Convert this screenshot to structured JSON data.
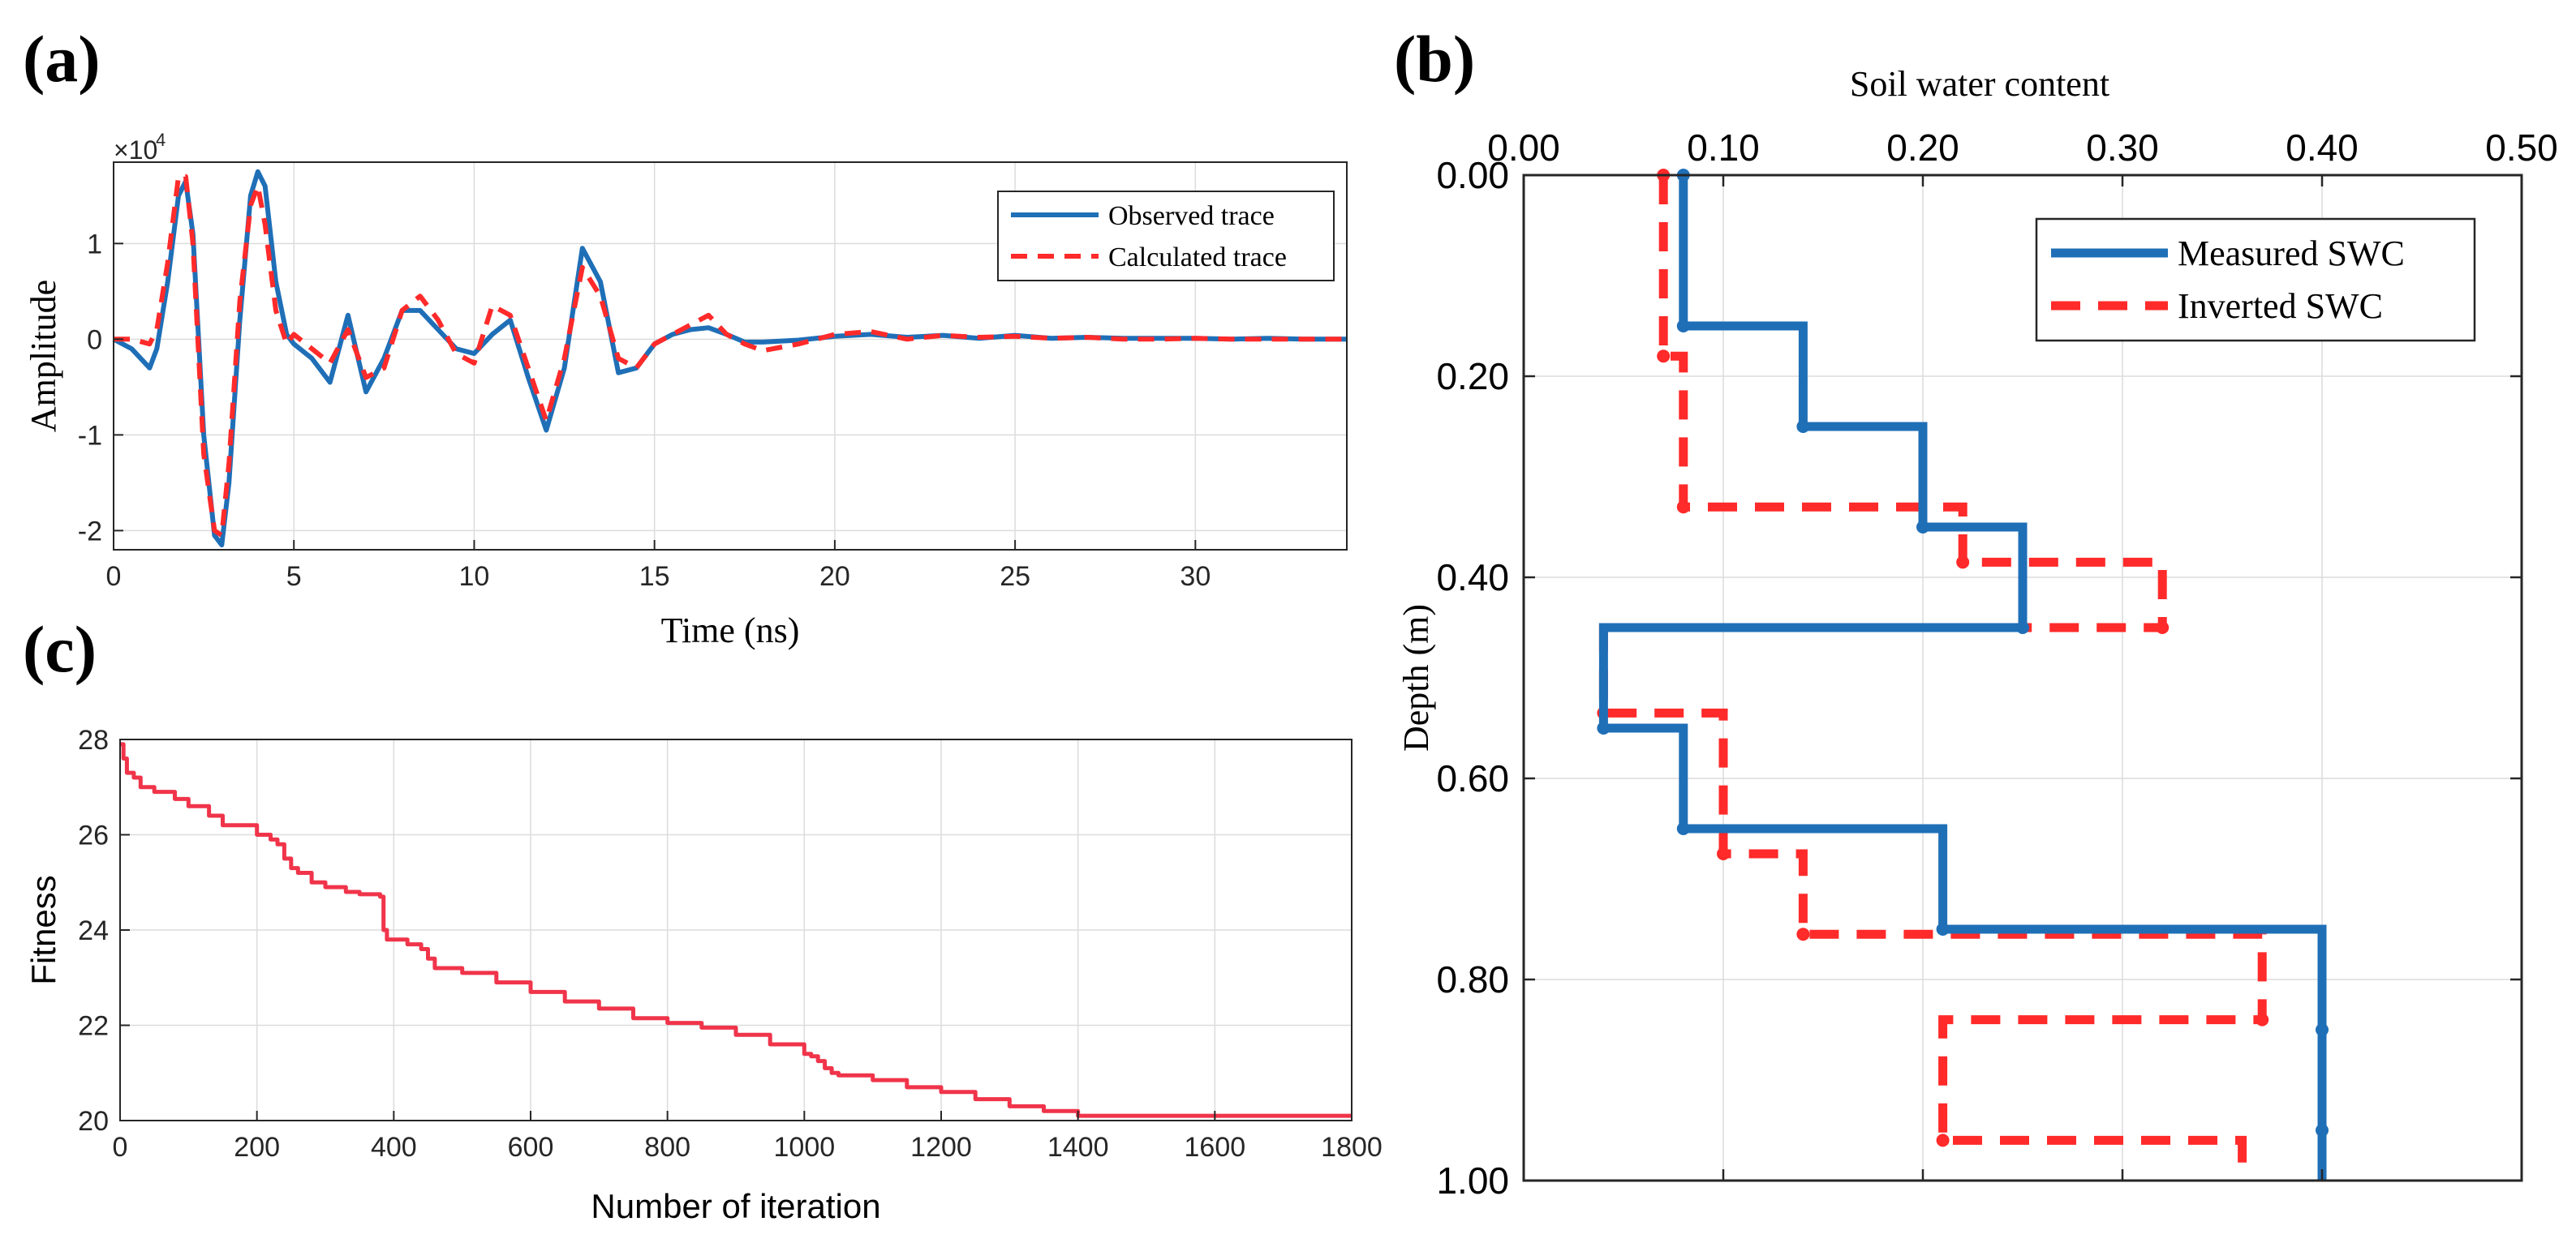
{
  "panels": {
    "a": {
      "letter": "(a)"
    },
    "b": {
      "letter": "(b)"
    },
    "c": {
      "letter": "(c)"
    }
  },
  "chart_data": [
    {
      "id": "a",
      "type": "line",
      "title": "",
      "xlabel": "Time (ns)",
      "ylabel": "Amplitude",
      "exponent_base": "×10",
      "exponent_power": "4",
      "xlim": [
        0,
        34.2
      ],
      "ylim": [
        -2.2,
        1.85
      ],
      "xticks": [
        0,
        5,
        10,
        15,
        20,
        25,
        30
      ],
      "yticks": [
        -2,
        -1,
        0,
        1
      ],
      "grid": true,
      "legend": "top-right",
      "colors": {
        "observed": "#1f6fb7",
        "calculated": "#ff2a2a"
      },
      "series": [
        {
          "name": "Observed trace",
          "style": "solid",
          "x": [
            0,
            0.5,
            1.0,
            1.2,
            1.5,
            1.8,
            2.0,
            2.2,
            2.5,
            2.8,
            3.0,
            3.2,
            3.5,
            3.8,
            4.0,
            4.2,
            4.5,
            4.8,
            5.0,
            5.5,
            6.0,
            6.5,
            7.0,
            7.5,
            8.0,
            8.5,
            9.0,
            9.5,
            10.0,
            10.5,
            11.0,
            11.5,
            12.0,
            12.5,
            13.0,
            13.5,
            14.0,
            14.5,
            15.0,
            15.5,
            16.0,
            16.5,
            17.0,
            17.5,
            18.0,
            19.0,
            20.0,
            21.0,
            22.0,
            23.0,
            24.0,
            25.0,
            26.0,
            27.0,
            28.0,
            29.0,
            30.0,
            31.0,
            32.0,
            33.0,
            34.2
          ],
          "y": [
            0,
            -0.1,
            -0.3,
            -0.1,
            0.6,
            1.5,
            1.65,
            1.1,
            -1.0,
            -2.05,
            -2.15,
            -1.5,
            0.2,
            1.5,
            1.75,
            1.6,
            0.6,
            0.05,
            -0.05,
            -0.2,
            -0.45,
            0.25,
            -0.55,
            -0.2,
            0.3,
            0.3,
            0.1,
            -0.1,
            -0.15,
            0.05,
            0.2,
            -0.4,
            -0.95,
            -0.3,
            0.95,
            0.6,
            -0.35,
            -0.3,
            -0.05,
            0.05,
            0.1,
            0.12,
            0.05,
            -0.03,
            -0.03,
            -0.01,
            0.03,
            0.05,
            0.02,
            0.04,
            0.01,
            0.04,
            0.01,
            0.02,
            0.01,
            0.01,
            0.01,
            0.0,
            0.01,
            0.0,
            0.0
          ]
        },
        {
          "name": "Calculated trace",
          "style": "dashed",
          "x": [
            0,
            0.5,
            1.0,
            1.2,
            1.5,
            1.8,
            2.0,
            2.2,
            2.5,
            2.8,
            3.0,
            3.2,
            3.5,
            3.8,
            4.0,
            4.2,
            4.5,
            4.8,
            5.0,
            5.5,
            6.0,
            6.5,
            7.0,
            7.5,
            8.0,
            8.5,
            9.0,
            9.5,
            10.0,
            10.5,
            11.0,
            11.5,
            12.0,
            12.5,
            13.0,
            13.5,
            14.0,
            14.5,
            15.0,
            15.5,
            16.0,
            16.5,
            17.0,
            17.5,
            18.0,
            19.0,
            20.0,
            21.0,
            22.0,
            23.0,
            24.0,
            25.0,
            26.0,
            27.0,
            28.0,
            29.0,
            30.0,
            31.0,
            32.0,
            33.0,
            34.2
          ],
          "y": [
            0,
            0.0,
            -0.05,
            0.1,
            0.8,
            1.7,
            1.7,
            1.0,
            -1.2,
            -2.0,
            -2.05,
            -1.3,
            0.4,
            1.4,
            1.6,
            1.2,
            0.3,
            -0.05,
            0.05,
            -0.1,
            -0.25,
            0.1,
            -0.4,
            -0.3,
            0.3,
            0.45,
            0.2,
            -0.15,
            -0.25,
            0.35,
            0.25,
            -0.3,
            -0.85,
            -0.2,
            0.75,
            0.45,
            -0.2,
            -0.3,
            -0.05,
            0.05,
            0.15,
            0.25,
            0.05,
            -0.05,
            -0.12,
            -0.05,
            0.05,
            0.08,
            0.0,
            0.04,
            0.02,
            0.03,
            0.01,
            0.02,
            0.0,
            0.0,
            0.01,
            0.0,
            0.0,
            0.0,
            0.0
          ]
        }
      ]
    },
    {
      "id": "b",
      "type": "line",
      "title": "",
      "xlabel": "Soil water content",
      "ylabel": "Depth (m)",
      "xlim": [
        0,
        0.5
      ],
      "ylim": [
        0,
        1
      ],
      "y_reversed": true,
      "x_axis_position": "top",
      "xticks": [
        0,
        0.1,
        0.2,
        0.3,
        0.4,
        0.5
      ],
      "xtick_labels": [
        "0.00",
        "0.10",
        "0.20",
        "0.30",
        "0.40",
        "0.50"
      ],
      "yticks": [
        0,
        0.2,
        0.4,
        0.6,
        0.8,
        1.0
      ],
      "ytick_labels": [
        "0.00",
        "0.20",
        "0.40",
        "0.60",
        "0.80",
        "1.00"
      ],
      "grid": true,
      "legend": "top-right",
      "colors": {
        "measured": "#1f6fb7",
        "inverted": "#ff2a2a"
      },
      "series": [
        {
          "name": "Measured SWC",
          "style": "solid",
          "x": [
            0.08,
            0.08,
            0.14,
            0.14,
            0.2,
            0.2,
            0.25,
            0.25,
            0.04,
            0.04,
            0.08,
            0.08,
            0.21,
            0.21,
            0.4,
            0.4,
            0.4,
            0.4
          ],
          "y": [
            0.0,
            0.15,
            0.15,
            0.25,
            0.25,
            0.35,
            0.35,
            0.45,
            0.45,
            0.55,
            0.55,
            0.65,
            0.65,
            0.75,
            0.75,
            0.85,
            0.95,
            1.0
          ],
          "markers": [
            [
              0.08,
              0.0
            ],
            [
              0.08,
              0.15
            ],
            [
              0.14,
              0.25
            ],
            [
              0.2,
              0.35
            ],
            [
              0.25,
              0.45
            ],
            [
              0.04,
              0.55
            ],
            [
              0.08,
              0.65
            ],
            [
              0.21,
              0.75
            ],
            [
              0.4,
              0.85
            ],
            [
              0.4,
              0.95
            ]
          ]
        },
        {
          "name": "Inverted SWC",
          "style": "dashed",
          "x": [
            0.07,
            0.07,
            0.08,
            0.08,
            0.22,
            0.22,
            0.32,
            0.32,
            0.04,
            0.04,
            0.1,
            0.1,
            0.14,
            0.14,
            0.37,
            0.37,
            0.21,
            0.21,
            0.36,
            0.36
          ],
          "y": [
            0.0,
            0.18,
            0.18,
            0.33,
            0.33,
            0.385,
            0.385,
            0.45,
            0.45,
            0.535,
            0.535,
            0.675,
            0.675,
            0.755,
            0.755,
            0.84,
            0.84,
            0.96,
            0.96,
            1.0
          ],
          "markers": [
            [
              0.07,
              0.0
            ],
            [
              0.07,
              0.18
            ],
            [
              0.08,
              0.33
            ],
            [
              0.22,
              0.385
            ],
            [
              0.32,
              0.45
            ],
            [
              0.04,
              0.535
            ],
            [
              0.1,
              0.675
            ],
            [
              0.14,
              0.755
            ],
            [
              0.37,
              0.84
            ],
            [
              0.21,
              0.96
            ]
          ]
        }
      ]
    },
    {
      "id": "c",
      "type": "line",
      "title": "",
      "xlabel": "Number of iteration",
      "ylabel": "Fitness",
      "xlim": [
        0,
        1800
      ],
      "ylim": [
        20,
        28
      ],
      "xticks": [
        0,
        200,
        400,
        600,
        800,
        1000,
        1200,
        1400,
        1600,
        1800
      ],
      "yticks": [
        20,
        22,
        24,
        26,
        28
      ],
      "grid": true,
      "colors": {
        "line": "#f0344a"
      },
      "series": [
        {
          "x": [
            0,
            5,
            10,
            20,
            30,
            50,
            80,
            100,
            130,
            150,
            200,
            220,
            230,
            240,
            250,
            260,
            280,
            300,
            330,
            350,
            380,
            385,
            390,
            420,
            440,
            450,
            460,
            500,
            550,
            600,
            650,
            700,
            750,
            800,
            850,
            900,
            950,
            1000,
            1010,
            1020,
            1030,
            1040,
            1050,
            1100,
            1150,
            1200,
            1250,
            1300,
            1350,
            1400,
            1450,
            1500,
            1600,
            1700,
            1800
          ],
          "y": [
            27.9,
            27.6,
            27.3,
            27.2,
            27.0,
            26.9,
            26.75,
            26.6,
            26.4,
            26.2,
            26.0,
            25.9,
            25.8,
            25.5,
            25.3,
            25.2,
            25.0,
            24.9,
            24.8,
            24.75,
            24.7,
            24.0,
            23.8,
            23.7,
            23.6,
            23.4,
            23.2,
            23.1,
            22.9,
            22.7,
            22.5,
            22.35,
            22.15,
            22.05,
            21.95,
            21.8,
            21.6,
            21.4,
            21.35,
            21.25,
            21.1,
            21.0,
            20.95,
            20.85,
            20.7,
            20.6,
            20.45,
            20.3,
            20.2,
            20.1,
            20.1,
            20.1,
            20.1,
            20.1,
            20.1
          ]
        }
      ]
    }
  ]
}
